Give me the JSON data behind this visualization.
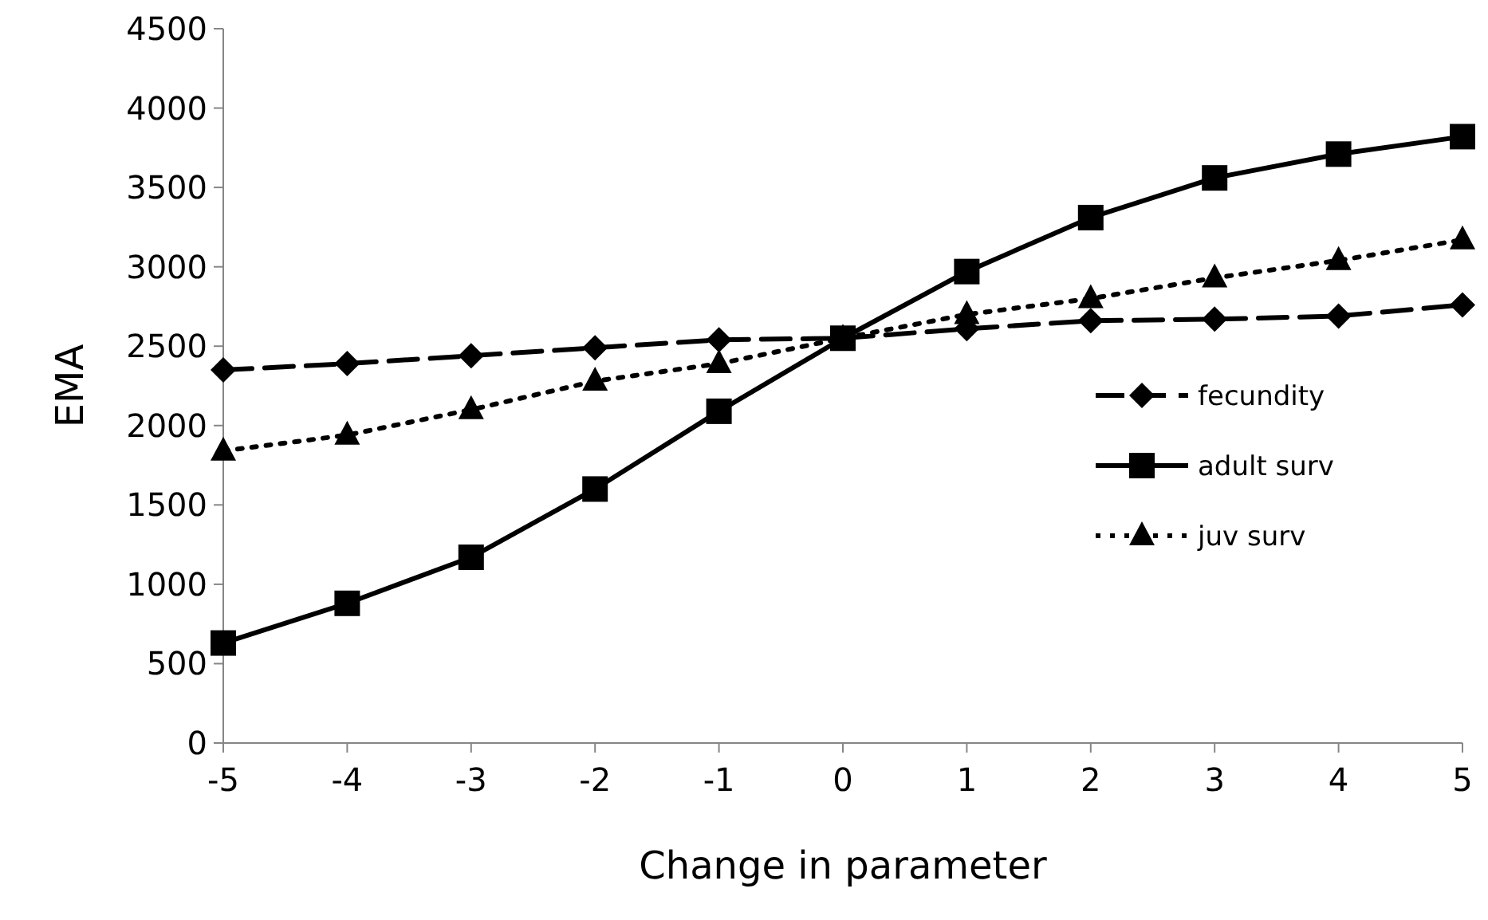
{
  "chart_data": {
    "type": "line",
    "xlabel": "Change in parameter",
    "ylabel": "EMA",
    "x": [
      -5,
      -4,
      -3,
      -2,
      -1,
      0,
      1,
      2,
      3,
      4,
      5
    ],
    "xlim": [
      -5,
      5
    ],
    "xticks": [
      -5,
      -4,
      -3,
      -2,
      -1,
      0,
      1,
      2,
      3,
      4,
      5
    ],
    "ylim": [
      0,
      4500
    ],
    "yticks": [
      0,
      500,
      1000,
      1500,
      2000,
      2500,
      3000,
      3500,
      4000,
      4500
    ],
    "grid": false,
    "legend": "right",
    "series": [
      {
        "name": "fecundity",
        "color": "#000000",
        "marker": "diamond",
        "line_style": "dashed",
        "values": [
          2350,
          2390,
          2440,
          2490,
          2540,
          2550,
          2610,
          2660,
          2670,
          2690,
          2760
        ]
      },
      {
        "name": "adult surv",
        "color": "#000000",
        "marker": "square",
        "line_style": "solid",
        "values": [
          630,
          880,
          1170,
          1600,
          2090,
          2550,
          2970,
          3310,
          3560,
          3710,
          3820
        ]
      },
      {
        "name": "juv surv",
        "color": "#000000",
        "marker": "triangle",
        "line_style": "dotted",
        "values": [
          1840,
          1940,
          2100,
          2280,
          2390,
          2550,
          2700,
          2800,
          2930,
          3040,
          3170
        ]
      }
    ]
  }
}
